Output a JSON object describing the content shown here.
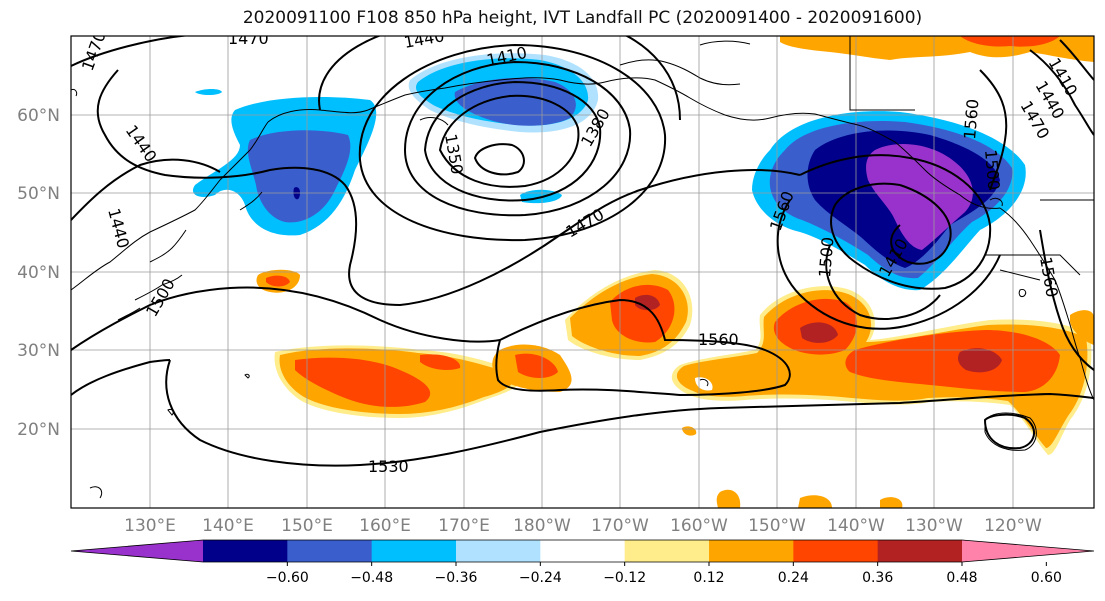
{
  "title": "2020091100 F108 850 hPa height, IVT Landfall PC (2020091400 - 2020091600)",
  "lon_labels": [
    "130°E",
    "140°E",
    "150°E",
    "160°E",
    "170°E",
    "180°W",
    "170°W",
    "160°W",
    "150°W",
    "140°W",
    "130°W",
    "120°W"
  ],
  "lat_labels": [
    "60°N",
    "50°N",
    "40°N",
    "30°N",
    "20°N"
  ],
  "contour_labels": [
    "1470",
    "1470",
    "1440",
    "1440",
    "1440",
    "1410",
    "1380",
    "1350",
    "1500",
    "1470",
    "1560",
    "1560",
    "1560",
    "1500",
    "1410",
    "1560",
    "1530",
    "1500",
    "1410",
    "1440",
    "1470"
  ],
  "colorbar": {
    "colors": [
      "#9932cc",
      "#00008b",
      "#3a5fcd",
      "#00bfff",
      "#b0e2ff",
      "#ffffff",
      "#ffec8b",
      "#ffa500",
      "#ff4500",
      "#b22222",
      "#ff82ab"
    ],
    "labels": [
      "−0.60",
      "−0.48",
      "−0.36",
      "−0.24",
      "−0.12",
      "0.12",
      "0.24",
      "0.36",
      "0.48",
      "0.60"
    ]
  }
}
